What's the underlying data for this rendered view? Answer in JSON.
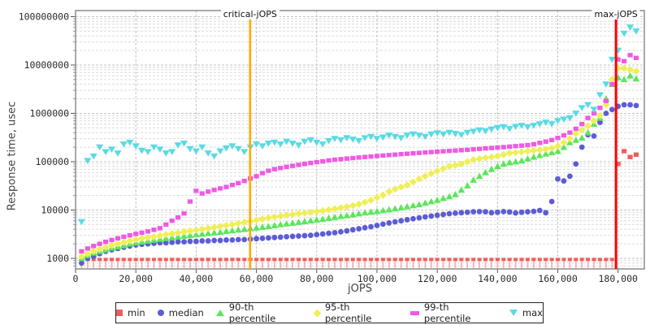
{
  "chart_data": {
    "type": "scatter",
    "title": "",
    "grid": true,
    "legend_position": "bottom",
    "x_axis": {
      "label": "jOPS",
      "min": 0,
      "max": 188700,
      "ticks": [
        0,
        20000,
        40000,
        60000,
        80000,
        100000,
        120000,
        140000,
        160000,
        180000
      ],
      "tick_labels": [
        "0",
        "20,000",
        "40,000",
        "60,000",
        "80,000",
        "100,000",
        "120,000",
        "140,000",
        "160,000",
        "180,000"
      ]
    },
    "y_axis": {
      "label": "Response time, usec",
      "scale": "log",
      "min": 600,
      "max": 134000000,
      "ticks": [
        1000,
        10000,
        100000,
        1000000,
        10000000,
        100000000
      ],
      "tick_labels": [
        "1000",
        "10000",
        "100000",
        "1000000",
        "10000000",
        "100000000"
      ]
    },
    "reference_lines": [
      {
        "name": "critical-jOPS",
        "x": 57900,
        "color": "#ffaa00"
      },
      {
        "name": "max-jOPS",
        "x": 179300,
        "color": "#ff0000"
      }
    ],
    "colors": {
      "grid_major": "#c3c3c3",
      "grid_minor": "#dcdcdc",
      "frame": "#8c8c8c",
      "tick": "#555555",
      "tick_text": "#2b2b2b"
    },
    "x": [
      2000,
      4000,
      6000,
      8000,
      10000,
      12000,
      14000,
      16000,
      18000,
      20000,
      22000,
      24000,
      26000,
      28000,
      30000,
      32000,
      34000,
      36000,
      38000,
      40000,
      42000,
      44000,
      46000,
      48000,
      50000,
      52000,
      54000,
      56000,
      58000,
      60000,
      62000,
      64000,
      66000,
      68000,
      70000,
      72000,
      74000,
      76000,
      78000,
      80000,
      82000,
      84000,
      86000,
      88000,
      90000,
      92000,
      94000,
      96000,
      98000,
      100000,
      102000,
      104000,
      106000,
      108000,
      110000,
      112000,
      114000,
      116000,
      118000,
      120000,
      122000,
      124000,
      126000,
      128000,
      130000,
      132000,
      134000,
      136000,
      138000,
      140000,
      142000,
      144000,
      146000,
      148000,
      150000,
      152000,
      154000,
      156000,
      158000,
      160000,
      162000,
      164000,
      166000,
      168000,
      170000,
      172000,
      174000,
      176000,
      178000,
      180000,
      182000,
      184000,
      186000
    ],
    "series": [
      {
        "name": "min",
        "marker": "square",
        "legend_marker": "square",
        "color": "#f25c5c",
        "stem_color": "#f8b0b0",
        "values": [
          950,
          950,
          950,
          950,
          950,
          950,
          950,
          950,
          950,
          950,
          950,
          950,
          950,
          950,
          950,
          950,
          950,
          950,
          950,
          950,
          950,
          950,
          950,
          950,
          950,
          950,
          950,
          950,
          950,
          950,
          950,
          950,
          950,
          950,
          950,
          950,
          950,
          950,
          950,
          950,
          950,
          950,
          950,
          950,
          950,
          950,
          950,
          950,
          950,
          950,
          950,
          950,
          950,
          950,
          950,
          950,
          950,
          950,
          950,
          950,
          950,
          950,
          950,
          950,
          950,
          950,
          950,
          950,
          950,
          950,
          950,
          950,
          950,
          950,
          950,
          950,
          950,
          950,
          950,
          950,
          950,
          950,
          950,
          950,
          950,
          950,
          950,
          950,
          950,
          90000,
          165000,
          125000,
          140000
        ]
      },
      {
        "name": "median",
        "marker": "circle",
        "legend_marker": "circle",
        "color": "#5c5cd6",
        "values": [
          800,
          1000,
          1100,
          1250,
          1400,
          1500,
          1600,
          1700,
          1800,
          1900,
          1950,
          2000,
          2050,
          2100,
          2100,
          2150,
          2200,
          2200,
          2250,
          2250,
          2300,
          2300,
          2350,
          2350,
          2400,
          2400,
          2450,
          2450,
          2500,
          2550,
          2600,
          2650,
          2700,
          2750,
          2800,
          2850,
          2900,
          2950,
          3000,
          3100,
          3200,
          3300,
          3400,
          3550,
          3700,
          3900,
          4100,
          4300,
          4500,
          4800,
          5100,
          5400,
          5700,
          6000,
          6300,
          6600,
          6900,
          7200,
          7500,
          7800,
          8100,
          8400,
          8600,
          8800,
          9000,
          9200,
          9300,
          9200,
          8800,
          9000,
          9300,
          9100,
          8700,
          9000,
          9200,
          9400,
          9800,
          8800,
          15000,
          44000,
          40000,
          50000,
          90000,
          200000,
          360000,
          340000,
          650000,
          1000000,
          1200000,
          1400000,
          1500000,
          1500000,
          1450000
        ]
      },
      {
        "name": "90-th percentile",
        "marker": "triangle-up",
        "legend_marker": "triangle-up",
        "color": "#5ce65c",
        "values": [
          1000,
          1150,
          1300,
          1400,
          1500,
          1650,
          1750,
          1850,
          2000,
          2100,
          2200,
          2300,
          2400,
          2500,
          2600,
          2700,
          2800,
          2900,
          3000,
          3100,
          3200,
          3300,
          3400,
          3500,
          3650,
          3750,
          3900,
          4000,
          4150,
          4300,
          4450,
          4600,
          4800,
          5000,
          5200,
          5400,
          5600,
          5800,
          6000,
          6300,
          6500,
          6800,
          7100,
          7400,
          7700,
          8000,
          8400,
          8800,
          9100,
          9400,
          9800,
          10200,
          10700,
          11200,
          11800,
          12400,
          13000,
          14000,
          15000,
          16000,
          17500,
          19000,
          21000,
          26000,
          32000,
          42000,
          50000,
          60000,
          70000,
          80000,
          90000,
          96000,
          100000,
          105000,
          115000,
          125000,
          135000,
          145000,
          155000,
          165000,
          200000,
          250000,
          280000,
          310000,
          400000,
          600000,
          800000,
          2000000,
          4000000,
          5500000,
          5000000,
          6000000,
          5200000
        ]
      },
      {
        "name": "95-th percentile",
        "marker": "diamond",
        "legend_marker": "diamond",
        "color": "#efef55",
        "values": [
          1100,
          1250,
          1400,
          1550,
          1700,
          1850,
          2000,
          2150,
          2300,
          2450,
          2600,
          2700,
          2800,
          2950,
          3100,
          3250,
          3400,
          3550,
          3700,
          3850,
          4000,
          4200,
          4400,
          4600,
          4800,
          5000,
          5300,
          5600,
          5900,
          6200,
          6500,
          6900,
          7200,
          7500,
          7800,
          8100,
          8400,
          8700,
          9000,
          9300,
          9700,
          10100,
          10600,
          11100,
          11700,
          12400,
          13200,
          14500,
          16000,
          18000,
          20500,
          24000,
          27000,
          30000,
          33000,
          38000,
          44000,
          50000,
          57000,
          64000,
          72000,
          80000,
          85000,
          90000,
          100000,
          110000,
          115000,
          120000,
          125000,
          130000,
          140000,
          150000,
          155000,
          160000,
          165000,
          170000,
          175000,
          180000,
          190000,
          210000,
          250000,
          300000,
          380000,
          450000,
          550000,
          700000,
          900000,
          1500000,
          5000000,
          8500000,
          8600000,
          8000000,
          7400000
        ]
      },
      {
        "name": "99-th percentile",
        "marker": "square",
        "legend_marker": "bar",
        "color": "#f059e3",
        "values": [
          1400,
          1600,
          1800,
          2000,
          2200,
          2400,
          2600,
          2800,
          3000,
          3200,
          3400,
          3600,
          3900,
          4200,
          5000,
          6000,
          7000,
          8500,
          15000,
          25000,
          22000,
          24000,
          26000,
          28000,
          30000,
          33000,
          36000,
          40000,
          45000,
          50000,
          58000,
          65000,
          70000,
          74000,
          78000,
          82000,
          86000,
          90000,
          94000,
          98000,
          102000,
          106000,
          110000,
          113000,
          116000,
          119000,
          122000,
          125000,
          128000,
          131000,
          134000,
          137000,
          140000,
          143000,
          146000,
          149000,
          152000,
          155000,
          158000,
          161000,
          164000,
          167000,
          170000,
          173000,
          176000,
          180000,
          184000,
          188000,
          192000,
          196000,
          200000,
          205000,
          210000,
          215000,
          220000,
          230000,
          245000,
          260000,
          280000,
          310000,
          350000,
          400000,
          480000,
          600000,
          800000,
          1000000,
          1300000,
          1800000,
          4000000,
          13000000,
          12000000,
          16000000,
          14000000
        ]
      },
      {
        "name": "max",
        "marker": "triangle-down",
        "legend_marker": "triangle-down",
        "color": "#59dbe3",
        "values": [
          5700,
          105000,
          130000,
          200000,
          160000,
          180000,
          150000,
          230000,
          250000,
          210000,
          170000,
          160000,
          200000,
          180000,
          150000,
          160000,
          220000,
          240000,
          185000,
          165000,
          200000,
          150000,
          130000,
          165000,
          190000,
          210000,
          185000,
          160000,
          200000,
          230000,
          210000,
          240000,
          250000,
          230000,
          260000,
          240000,
          220000,
          260000,
          280000,
          250000,
          230000,
          270000,
          300000,
          280000,
          310000,
          290000,
          270000,
          310000,
          330000,
          300000,
          320000,
          350000,
          330000,
          310000,
          350000,
          370000,
          350000,
          330000,
          370000,
          390000,
          370000,
          400000,
          380000,
          360000,
          400000,
          420000,
          450000,
          430000,
          470000,
          500000,
          520000,
          480000,
          530000,
          560000,
          520000,
          560000,
          600000,
          650000,
          600000,
          700000,
          750000,
          800000,
          1000000,
          1300000,
          1500000,
          1200000,
          2400000,
          4000000,
          13000000,
          20000000,
          45000000,
          60000000,
          50000000
        ]
      }
    ]
  }
}
